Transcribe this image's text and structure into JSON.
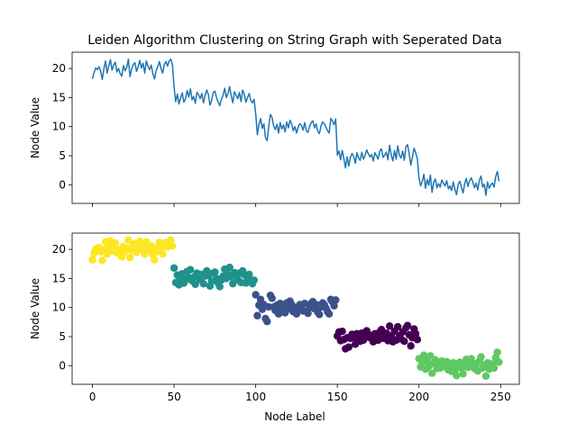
{
  "chart_data": [
    {
      "type": "line",
      "title": "Leiden Algorithm Clustering on String Graph with Seperated Data",
      "xlabel": "",
      "ylabel": "Node Value",
      "xlim": [
        -12.45,
        261.45
      ],
      "ylim": [
        -3.2,
        22.8
      ],
      "xticks": [
        0,
        50,
        100,
        150,
        200,
        250
      ],
      "xtick_labels_visible": false,
      "yticks": [
        0,
        5,
        10,
        15,
        20
      ],
      "grid": false,
      "line_color": "#1f77b4",
      "x": "0..249 (node index)",
      "y": [
        18.2,
        19.3,
        20.1,
        19.8,
        20.3,
        19.6,
        18.1,
        19.9,
        21.3,
        19.2,
        20.4,
        21.5,
        19.7,
        20.6,
        21.1,
        19.4,
        20.0,
        19.1,
        18.7,
        20.5,
        19.6,
        20.2,
        21.6,
        18.6,
        19.9,
        20.7,
        21.0,
        19.5,
        20.3,
        21.4,
        20.1,
        20.9,
        19.2,
        21.3,
        20.4,
        19.8,
        20.6,
        19.1,
        18.2,
        19.6,
        20.3,
        21.2,
        20.0,
        19.2,
        20.7,
        21.2,
        20.4,
        21.3,
        21.6,
        20.6,
        16.8,
        14.3,
        15.6,
        13.9,
        14.9,
        15.8,
        14.2,
        14.8,
        16.2,
        15.1,
        16.5,
        14.6,
        15.2,
        14.0,
        15.9,
        15.5,
        14.8,
        15.7,
        14.1,
        15.4,
        16.3,
        15.5,
        13.7,
        14.5,
        15.9,
        16.1,
        15.0,
        14.2,
        13.6,
        14.7,
        15.4,
        16.6,
        15.0,
        15.7,
        16.9,
        15.3,
        14.1,
        16.0,
        15.4,
        14.8,
        15.9,
        14.3,
        16.3,
        15.6,
        14.2,
        15.0,
        15.7,
        14.5,
        14.1,
        14.7,
        12.2,
        8.6,
        10.4,
        11.4,
        9.7,
        10.5,
        8.1,
        7.6,
        10.1,
        12.1,
        11.6,
        10.1,
        9.5,
        10.4,
        8.9,
        10.7,
        9.6,
        10.3,
        9.1,
        10.8,
        9.8,
        11.1,
        10.5,
        9.3,
        10.0,
        8.9,
        9.9,
        10.5,
        10.2,
        9.4,
        10.7,
        9.3,
        9.0,
        10.0,
        10.7,
        11.0,
        9.8,
        10.5,
        9.2,
        8.8,
        10.1,
        10.8,
        10.5,
        9.9,
        9.3,
        8.9,
        11.4,
        11.0,
        10.3,
        11.3,
        5.1,
        5.8,
        4.3,
        5.9,
        4.5,
        2.9,
        4.8,
        3.2,
        4.7,
        5.4,
        4.9,
        3.7,
        5.5,
        4.6,
        4.2,
        5.6,
        4.4,
        5.1,
        6.0,
        5.3,
        4.8,
        5.2,
        4.1,
        5.5,
        5.0,
        4.4,
        5.8,
        6.2,
        4.7,
        5.1,
        5.6,
        4.3,
        6.8,
        5.1,
        4.1,
        5.9,
        4.4,
        6.7,
        5.1,
        4.6,
        5.8,
        4.2,
        6.5,
        6.9,
        5.3,
        3.4,
        4.8,
        6.3,
        5.5,
        4.5,
        1.2,
        -0.2,
        0.6,
        1.8,
        -0.6,
        0.9,
        -0.1,
        1.7,
        -1.3,
        0.4,
        1.0,
        -0.5,
        0.2,
        -0.4,
        0.8,
        0.3,
        -0.2,
        0.7,
        -0.7,
        -0.2,
        -1.0,
        0.5,
        -0.8,
        -1.7,
        0.0,
        0.6,
        -0.4,
        -1.4,
        0.2,
        1.1,
        -0.3,
        0.7,
        1.2,
        0.4,
        -0.5,
        0.3,
        -0.9,
        0.8,
        1.5,
        -0.4,
        0.1,
        -1.8,
        0.5,
        -0.6,
        0.0,
        0.3,
        -0.4,
        1.4,
        2.3,
        0.6
      ]
    },
    {
      "type": "scatter",
      "xlabel": "Node Label",
      "ylabel": "Node Value",
      "xlim": [
        -12.45,
        261.45
      ],
      "ylim": [
        -3.2,
        22.8
      ],
      "xticks": [
        0,
        50,
        100,
        150,
        200,
        250
      ],
      "yticks": [
        0,
        5,
        10,
        15,
        20
      ],
      "grid": false,
      "clusters": [
        {
          "range": [
            0,
            49
          ],
          "color": "#fde725"
        },
        {
          "range": [
            50,
            99
          ],
          "color": "#21918c"
        },
        {
          "range": [
            100,
            149
          ],
          "color": "#3b528b"
        },
        {
          "range": [
            150,
            199
          ],
          "color": "#440154"
        },
        {
          "range": [
            200,
            249
          ],
          "color": "#5ec962"
        }
      ],
      "y_source": "same node values as line chart"
    }
  ]
}
